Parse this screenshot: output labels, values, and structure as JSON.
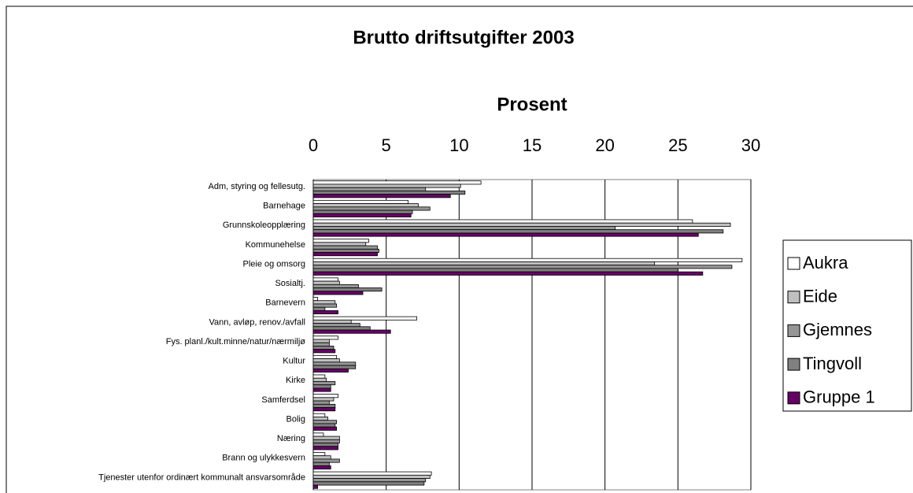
{
  "chart_data": {
    "type": "bar",
    "orientation": "horizontal",
    "title": "Brutto driftsutgifter 2003",
    "x_label": "Prosent",
    "categories": [
      "Adm, styring og fellesutg.",
      "Barnehage",
      "Grunnskoleopplæring",
      "Kommunehelse",
      "Pleie og omsorg",
      "Sosialtj.",
      "Barnevern",
      "Vann, avløp, renov./avfall",
      "Fys. planl./kult.minne/natur/nærmiljø",
      "Kultur",
      "Kirke",
      "Samferdsel",
      "Bolig",
      "Næring",
      "Brann og ulykkesvern",
      "Tjenester utenfor ordinært kommunalt ansvarsområde"
    ],
    "series": [
      {
        "name": "Aukra",
        "color": "#ffffff",
        "values": [
          11.5,
          6.5,
          26.0,
          3.8,
          29.4,
          1.7,
          0.3,
          7.1,
          1.7,
          1.6,
          0.8,
          1.7,
          0.8,
          0.7,
          0.8,
          8.1
        ]
      },
      {
        "name": "Eide",
        "color": "#c0c0c0",
        "values": [
          10.1,
          7.2,
          28.6,
          3.6,
          23.4,
          1.8,
          1.5,
          2.6,
          1.1,
          1.8,
          0.9,
          1.4,
          1.0,
          1.8,
          1.2,
          8.0
        ]
      },
      {
        "name": "Gjemnes",
        "color": "#969696",
        "values": [
          7.7,
          8.0,
          20.7,
          4.4,
          28.7,
          3.1,
          1.6,
          3.2,
          1.1,
          2.9,
          1.5,
          1.1,
          1.6,
          1.8,
          1.8,
          7.7
        ]
      },
      {
        "name": "Tingvoll",
        "color": "#808080",
        "values": [
          10.4,
          6.8,
          28.1,
          4.5,
          25.0,
          4.7,
          0.8,
          3.9,
          1.4,
          2.9,
          1.2,
          1.5,
          1.5,
          1.7,
          1.1,
          7.6
        ]
      },
      {
        "name": "Gruppe 1",
        "color": "#660066",
        "values": [
          9.4,
          6.7,
          26.4,
          4.4,
          26.7,
          3.4,
          1.7,
          5.3,
          1.5,
          2.4,
          1.2,
          1.5,
          1.6,
          1.7,
          1.2,
          0.3
        ]
      }
    ],
    "xlim": [
      0,
      30
    ],
    "xticks": [
      0,
      5,
      10,
      15,
      20,
      25,
      30
    ],
    "grid": true,
    "legend": "right"
  }
}
